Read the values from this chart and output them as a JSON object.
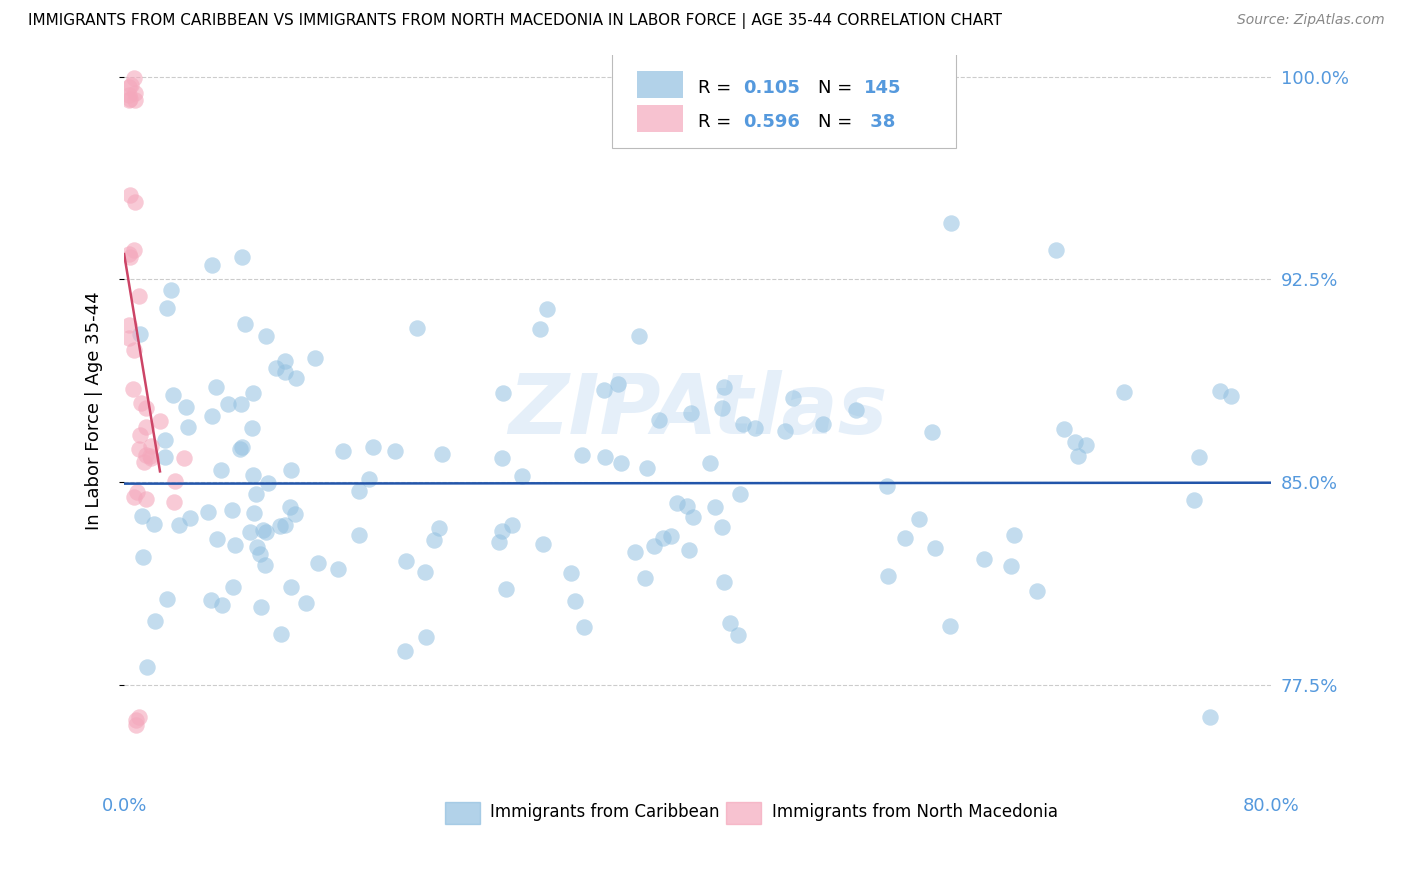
{
  "title": "IMMIGRANTS FROM CARIBBEAN VS IMMIGRANTS FROM NORTH MACEDONIA IN LABOR FORCE | AGE 35-44 CORRELATION CHART",
  "source": "Source: ZipAtlas.com",
  "ylabel": "In Labor Force | Age 35-44",
  "xmin": 0.0,
  "xmax": 0.8,
  "ymin": 0.745,
  "ymax": 1.008,
  "yticks": [
    0.775,
    0.85,
    0.925,
    1.0
  ],
  "ytick_labels": [
    "77.5%",
    "85.0%",
    "92.5%",
    "100.0%"
  ],
  "xtick_positions": [
    0.0,
    0.1,
    0.2,
    0.3,
    0.4,
    0.5,
    0.6,
    0.7,
    0.8
  ],
  "blue_color": "#92C0E0",
  "pink_color": "#F4A8BC",
  "blue_line_color": "#2255AA",
  "pink_line_color": "#CC4466",
  "axis_label_color": "#5599DD",
  "grid_color": "#CCCCCC",
  "watermark_text": "ZIPAtlas",
  "watermark_color": "#AACCEE",
  "legend_text_color_r": "#333333",
  "legend_text_color_n": "#333333",
  "legend_val_color": "#5599DD",
  "legend_val_color_pink": "#CC4466",
  "note": "Blue=Caribbean N=145 R=0.105, Pink=NorthMacedonia N=38 R=0.596"
}
